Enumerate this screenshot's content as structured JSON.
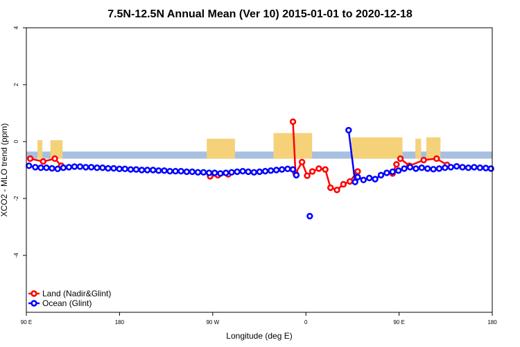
{
  "chart_data": {
    "type": "line",
    "title": "7.5N-12.5N Annual Mean (Ver 10)   2015-01-01 to 2020-12-18",
    "xlabel": "Longitude (deg E)",
    "ylabel": "XCO2 - MLO trend (ppm)",
    "xlim": [
      90,
      450
    ],
    "ylim": [
      -6,
      4
    ],
    "x_ticks": [
      {
        "value": 90,
        "label": "90 E"
      },
      {
        "value": 162,
        "label": "180"
      },
      {
        "value": 234,
        "label": "90 W"
      },
      {
        "value": 306,
        "label": "0"
      },
      {
        "value": 378,
        "label": "90 E"
      },
      {
        "value": 450,
        "label": "180"
      }
    ],
    "y_ticks": [
      {
        "value": 4,
        "label": "4"
      },
      {
        "value": 2,
        "label": "2"
      },
      {
        "value": 0,
        "label": "0"
      },
      {
        "value": -2,
        "label": "-2"
      },
      {
        "value": -4,
        "label": "-4"
      }
    ],
    "colors": {
      "land": "#ff0000",
      "ocean": "#0000ff",
      "land_band": "#f5d27a",
      "ocean_band": "#a7bfe0"
    },
    "legend": [
      {
        "name": "Land (Nadir&Glint)",
        "color": "#ff0000"
      },
      {
        "name": "Ocean (Glint)",
        "color": "#0000ff"
      }
    ],
    "mask_band": {
      "y_top": -0.35,
      "y_bottom": -0.6
    },
    "land_mask": [
      [
        98.6,
        102.4,
        0.05
      ],
      [
        108.6,
        118.0,
        0.05
      ],
      [
        229.4,
        251.2,
        0.1
      ],
      [
        281.0,
        310.8,
        0.3
      ],
      [
        341.0,
        380.6,
        0.15
      ],
      [
        390.6,
        395.0,
        0.1
      ],
      [
        399.0,
        410.0,
        0.15
      ]
    ],
    "series": [
      {
        "name": "Land (Nadir&Glint)",
        "color": "#ff0000",
        "segments": [
          [
            [
              93,
              -0.6
            ],
            [
              103,
              -0.7
            ],
            [
              112,
              -0.6
            ],
            [
              117,
              -0.85
            ]
          ],
          [
            [
              232,
              -1.22
            ],
            [
              238,
              -1.18
            ],
            [
              246,
              -1.15
            ]
          ],
          [
            [
              296,
              0.7
            ],
            [
              298,
              -1.12
            ],
            [
              303,
              -0.72
            ],
            [
              307,
              -1.2
            ],
            [
              311,
              -1.05
            ],
            [
              316,
              -0.95
            ],
            [
              321,
              -0.98
            ],
            [
              325,
              -1.62
            ],
            [
              330,
              -1.7
            ],
            [
              335,
              -1.5
            ],
            [
              340,
              -1.4
            ],
            [
              346,
              -1.05
            ]
          ],
          [
            [
              373,
              -1.12
            ],
            [
              376,
              -0.8
            ]
          ],
          [
            [
              379,
              -0.6
            ],
            [
              386,
              -0.85
            ],
            [
              397,
              -0.65
            ],
            [
              407,
              -0.6
            ],
            [
              415,
              -0.82
            ]
          ]
        ]
      },
      {
        "name": "Ocean (Glint)",
        "color": "#0000ff",
        "segments": [
          [
            [
              92,
              -0.85
            ],
            [
              96.9,
              -0.9
            ],
            [
              101.2,
              -0.92
            ],
            [
              105.5,
              -0.92
            ],
            [
              109.8,
              -0.94
            ],
            [
              114.2,
              -0.96
            ],
            [
              118.6,
              -0.92
            ],
            [
              122.9,
              -0.9
            ],
            [
              127.2,
              -0.88
            ],
            [
              131.5,
              -0.88
            ],
            [
              135.9,
              -0.9
            ],
            [
              140.2,
              -0.9
            ],
            [
              144.6,
              -0.92
            ],
            [
              148.9,
              -0.92
            ],
            [
              153.2,
              -0.94
            ],
            [
              157.5,
              -0.94
            ],
            [
              161.9,
              -0.96
            ],
            [
              166.2,
              -0.96
            ],
            [
              170.6,
              -0.98
            ],
            [
              174.9,
              -0.98
            ],
            [
              179.2,
              -1.0
            ],
            [
              183.5,
              -1.0
            ],
            [
              187.9,
              -1.0
            ],
            [
              192.2,
              -1.02
            ],
            [
              196.6,
              -1.02
            ],
            [
              200.9,
              -1.04
            ],
            [
              205.2,
              -1.04
            ],
            [
              209.5,
              -1.04
            ],
            [
              213.9,
              -1.06
            ],
            [
              218.2,
              -1.06
            ],
            [
              222.6,
              -1.08
            ],
            [
              226.9,
              -1.08
            ],
            [
              231.2,
              -1.1
            ],
            [
              235.5,
              -1.1
            ],
            [
              239.9,
              -1.12
            ],
            [
              244.2,
              -1.1
            ],
            [
              248.6,
              -1.08
            ],
            [
              252.9,
              -1.06
            ],
            [
              257.2,
              -1.04
            ],
            [
              261.5,
              -1.06
            ],
            [
              265.9,
              -1.08
            ],
            [
              270.2,
              -1.06
            ],
            [
              274.6,
              -1.04
            ],
            [
              278.9,
              -1.02
            ],
            [
              283.2,
              -1.0
            ],
            [
              287.5,
              -0.98
            ],
            [
              291.9,
              -0.96
            ],
            [
              296.0,
              -0.98
            ],
            [
              298.6,
              -1.18
            ]
          ],
          [
            [
              339,
              0.4
            ],
            [
              344.0,
              -1.42
            ]
          ],
          [
            [
              346.0,
              -1.25
            ],
            [
              350.5,
              -1.35
            ],
            [
              355.0,
              -1.28
            ],
            [
              359.5,
              -1.32
            ],
            [
              364.0,
              -1.18
            ],
            [
              368.5,
              -1.1
            ],
            [
              373.0,
              -1.06
            ],
            [
              377.5,
              -1.02
            ],
            [
              382.0,
              -0.95
            ],
            [
              386.5,
              -0.9
            ],
            [
              391.0,
              -0.95
            ],
            [
              395.5,
              -0.92
            ],
            [
              400.0,
              -0.95
            ],
            [
              404.5,
              -0.97
            ],
            [
              409.0,
              -0.95
            ],
            [
              413.5,
              -0.92
            ],
            [
              418.0,
              -0.9
            ],
            [
              422.5,
              -0.87
            ],
            [
              427.0,
              -0.9
            ],
            [
              431.5,
              -0.92
            ],
            [
              436.0,
              -0.9
            ],
            [
              440.5,
              -0.92
            ],
            [
              445.0,
              -0.93
            ],
            [
              449.0,
              -0.95
            ]
          ]
        ],
        "extra_points": [
          [
            309,
            -2.62
          ]
        ]
      }
    ]
  }
}
